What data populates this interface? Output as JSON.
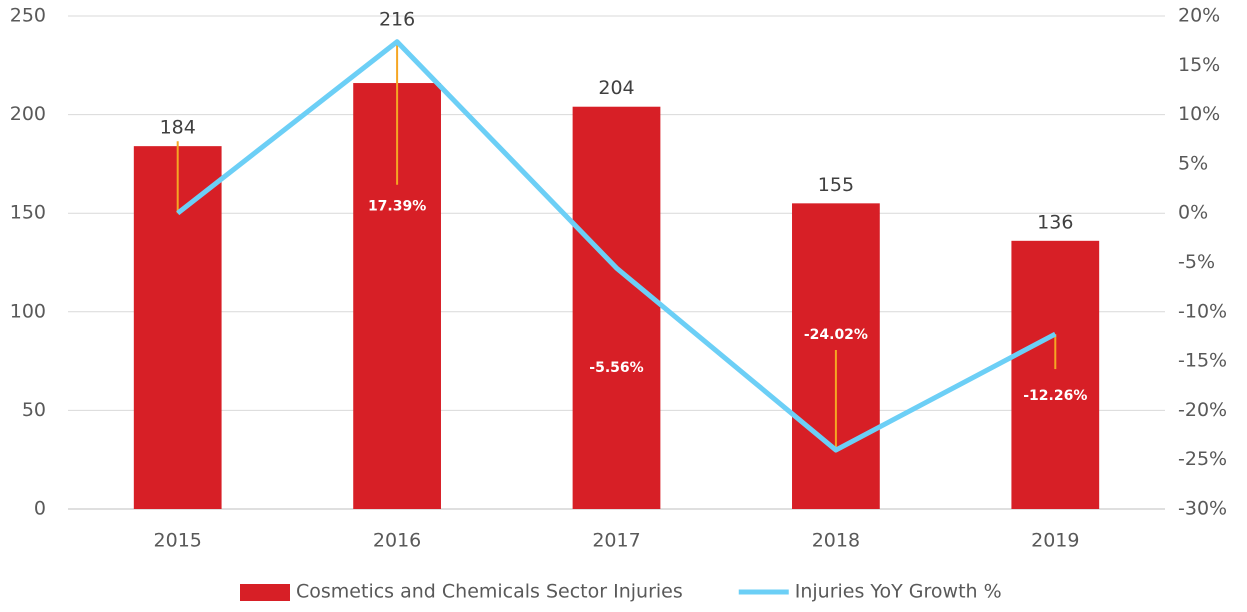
{
  "chart_data": {
    "type": "bar",
    "categories": [
      "2015",
      "2016",
      "2017",
      "2018",
      "2019"
    ],
    "series": [
      {
        "name": "Cosmetics and Chemicals Sector Injuries",
        "type": "bar",
        "color": "#d71f26",
        "values": [
          184,
          216,
          204,
          155,
          136
        ]
      },
      {
        "name": "Injuries YoY Growth %",
        "type": "line",
        "axis": "y2",
        "color": "#6ccff6",
        "values": [
          0,
          17.39,
          -5.56,
          -24.02,
          -12.26
        ],
        "value_labels": [
          null,
          "17.39%",
          "-5.56%",
          "-24.02%",
          "-12.26%"
        ]
      }
    ],
    "ylim": [
      0,
      250
    ],
    "yticks": [
      0,
      50,
      100,
      150,
      200,
      250
    ],
    "y2lim": [
      -30,
      20
    ],
    "y2ticks": [
      {
        "value": -30,
        "label": "-30%"
      },
      {
        "value": -25,
        "label": "-25%"
      },
      {
        "value": -20,
        "label": "-20%"
      },
      {
        "value": -15,
        "label": "-15%"
      },
      {
        "value": -10,
        "label": "-10%"
      },
      {
        "value": -5,
        "label": "-5%"
      },
      {
        "value": 0,
        "label": "0%"
      },
      {
        "value": 5,
        "label": "5%"
      },
      {
        "value": 10,
        "label": "10%"
      },
      {
        "value": 15,
        "label": "15%"
      },
      {
        "value": 20,
        "label": "20%"
      }
    ],
    "grid": true,
    "legend": "bottom"
  }
}
